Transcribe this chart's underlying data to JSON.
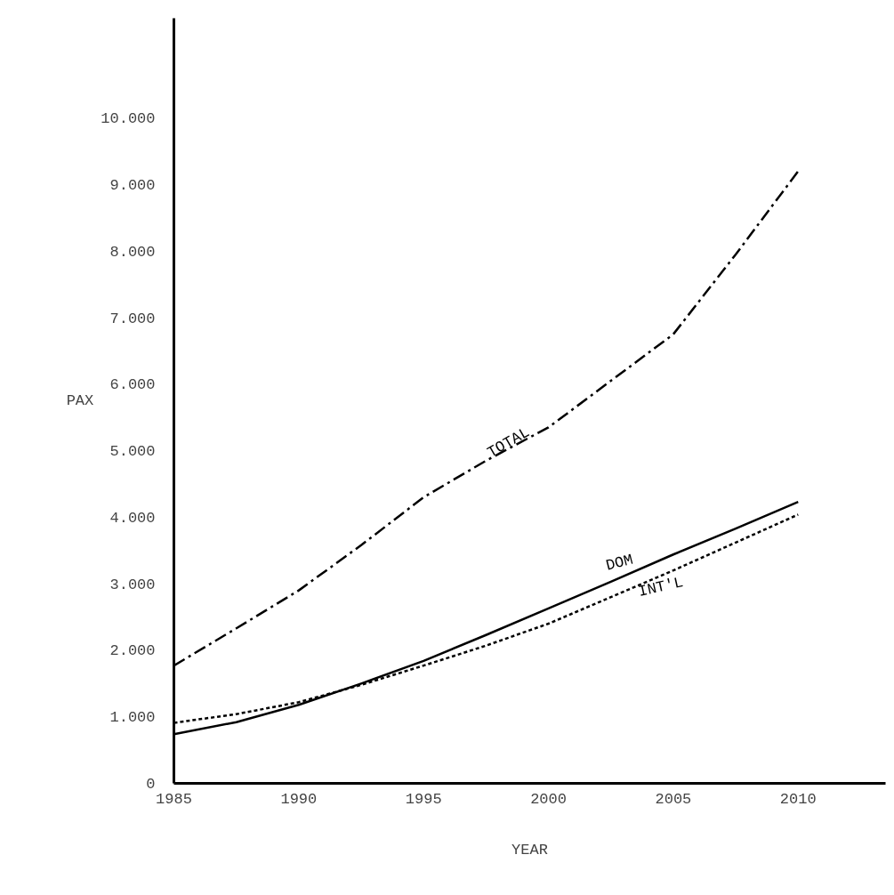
{
  "chart_data": {
    "type": "line",
    "xlabel": "YEAR",
    "ylabel": "PAX",
    "x": [
      1985,
      1987.5,
      1990,
      1992.5,
      1995,
      1997.5,
      2000,
      2002.5,
      2005,
      2007.5,
      2010
    ],
    "series": [
      {
        "name": "TOTAL",
        "color": "#000000",
        "line_style": "dashdot",
        "values": [
          1770,
          2330,
          2900,
          3580,
          4300,
          4850,
          5350,
          6050,
          6750,
          7950,
          9200
        ]
      },
      {
        "name": "DOM",
        "color": "#000000",
        "line_style": "solid",
        "values": [
          740,
          920,
          1180,
          1500,
          1840,
          2230,
          2630,
          3030,
          3440,
          3830,
          4230
        ]
      },
      {
        "name": "INT'L",
        "color": "#000000",
        "line_style": "dashed",
        "values": [
          910,
          1040,
          1220,
          1480,
          1770,
          2070,
          2400,
          2800,
          3200,
          3620,
          4040
        ]
      }
    ],
    "xlim": [
      1985,
      2013.5
    ],
    "ylim": [
      0,
      11500
    ],
    "xticks": [
      1985,
      1990,
      1995,
      2000,
      2005,
      2010
    ],
    "yticks": [
      0,
      {
        "value": 1000,
        "label": "1.000"
      },
      {
        "value": 2000,
        "label": "2.000"
      },
      {
        "value": 3000,
        "label": "3.000"
      },
      {
        "value": 4000,
        "label": "4.000"
      },
      {
        "value": 5000,
        "label": "5.000"
      },
      {
        "value": 6000,
        "label": "6.000"
      },
      {
        "value": 7000,
        "label": "7.000"
      },
      {
        "value": 8000,
        "label": "8.000"
      },
      {
        "value": 9000,
        "label": "9.000"
      },
      {
        "value": 10000,
        "label": "10.000"
      }
    ],
    "grid": false,
    "marker": "none"
  }
}
